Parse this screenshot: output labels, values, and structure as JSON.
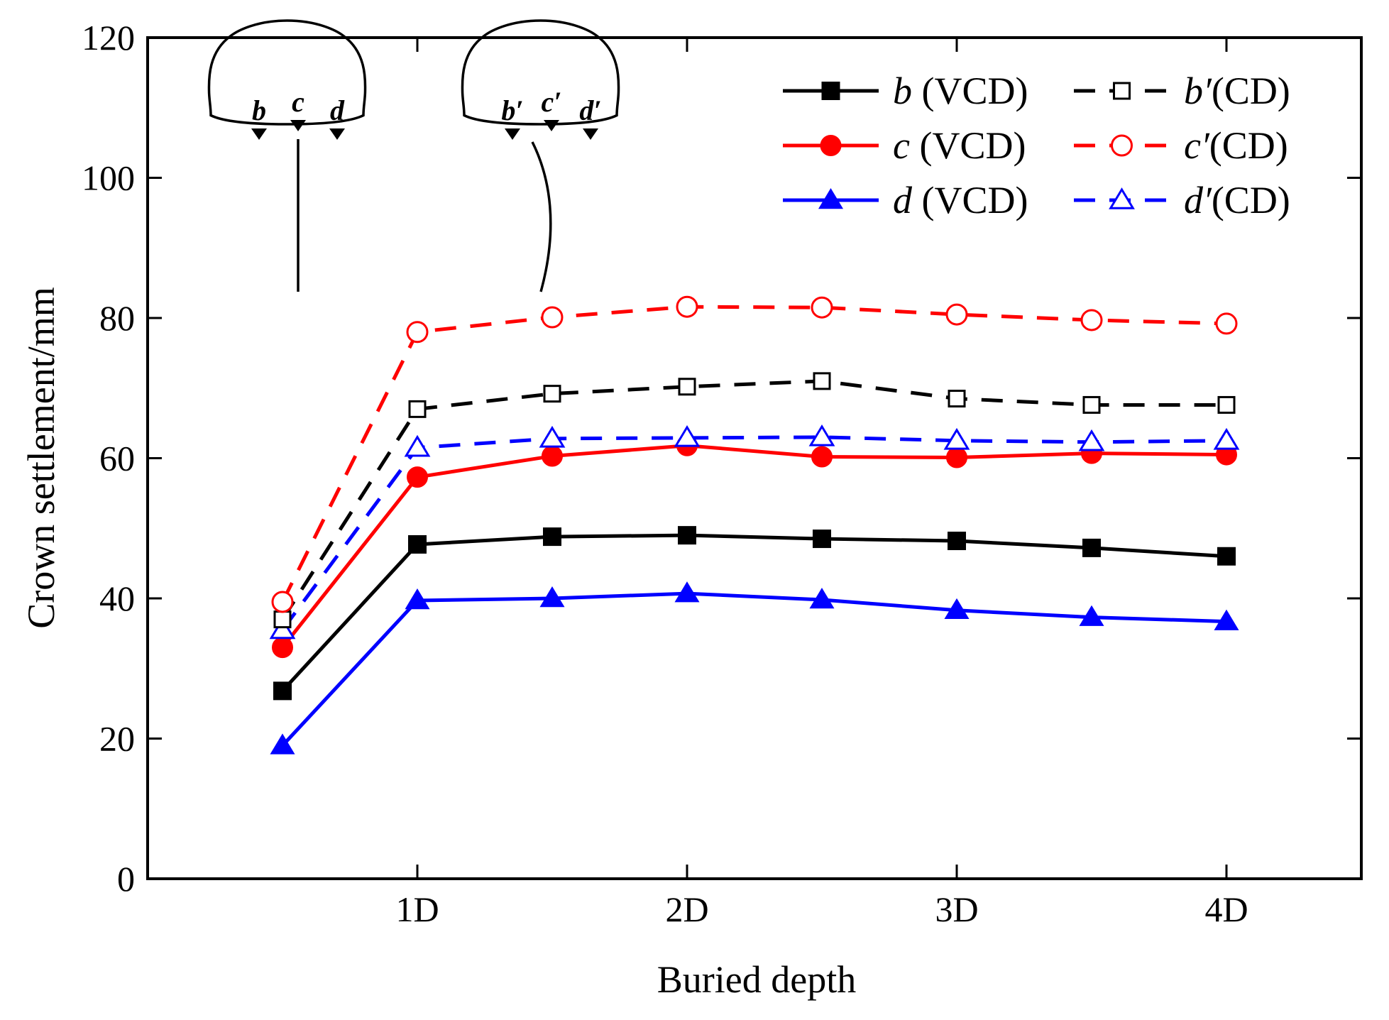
{
  "chart_data": {
    "type": "line",
    "title": "",
    "xlabel": "Buried depth",
    "ylabel": "Crown settlement/mm",
    "x": [
      0.5,
      1.0,
      1.5,
      2.0,
      2.5,
      3.0,
      3.5,
      4.0
    ],
    "xlim": [
      0,
      4.5
    ],
    "ylim": [
      0,
      120
    ],
    "x_ticks": [
      {
        "value": 1,
        "label": "1D"
      },
      {
        "value": 2,
        "label": "2D"
      },
      {
        "value": 3,
        "label": "3D"
      },
      {
        "value": 4,
        "label": "4D"
      }
    ],
    "y_ticks": [
      {
        "value": 0,
        "label": "0"
      },
      {
        "value": 20,
        "label": "20"
      },
      {
        "value": 40,
        "label": "40"
      },
      {
        "value": 60,
        "label": "60"
      },
      {
        "value": 80,
        "label": "80"
      },
      {
        "value": 100,
        "label": "100"
      },
      {
        "value": 120,
        "label": "120"
      }
    ],
    "legend_position": "top-right",
    "series": [
      {
        "id": "b-vcd",
        "var": "b",
        "suffix": " (VCD)",
        "color": "#000000",
        "dashed": false,
        "marker": "square",
        "filled": true,
        "values": [
          26.8,
          47.7,
          48.8,
          49.0,
          48.5,
          48.2,
          47.2,
          46.0
        ]
      },
      {
        "id": "b-cd",
        "var": "b′",
        "suffix": "(CD)",
        "color": "#000000",
        "dashed": true,
        "marker": "square",
        "filled": false,
        "values": [
          37.0,
          67.0,
          69.2,
          70.2,
          71.0,
          68.5,
          67.6,
          67.6
        ]
      },
      {
        "id": "c-vcd",
        "var": "c",
        "suffix": " (VCD)",
        "color": "#ff0000",
        "dashed": false,
        "marker": "circle",
        "filled": true,
        "values": [
          33.0,
          57.3,
          60.3,
          61.8,
          60.2,
          60.1,
          60.7,
          60.5
        ]
      },
      {
        "id": "c-cd",
        "var": "c′",
        "suffix": "(CD)",
        "color": "#ff0000",
        "dashed": true,
        "marker": "circle",
        "filled": false,
        "values": [
          39.5,
          78.0,
          80.1,
          81.6,
          81.5,
          80.5,
          79.7,
          79.2
        ]
      },
      {
        "id": "d-vcd",
        "var": "d",
        "suffix": " (VCD)",
        "color": "#0000ff",
        "dashed": false,
        "marker": "triangle",
        "filled": true,
        "values": [
          19.0,
          39.7,
          40.0,
          40.7,
          39.8,
          38.3,
          37.3,
          36.7
        ]
      },
      {
        "id": "d-cd",
        "var": "d′",
        "suffix": "(CD)",
        "color": "#0000ff",
        "dashed": true,
        "marker": "triangle",
        "filled": false,
        "values": [
          35.5,
          61.5,
          62.8,
          62.9,
          63.0,
          62.5,
          62.3,
          62.5
        ]
      }
    ],
    "inset": {
      "left_labels": [
        "b",
        "c",
        "d"
      ],
      "right_labels": [
        "b′",
        "c′",
        "d′"
      ]
    }
  }
}
